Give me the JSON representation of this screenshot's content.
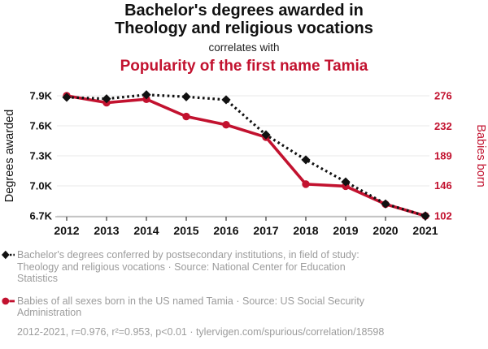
{
  "header": {
    "title_line1": "Bachelor's degrees awarded in",
    "title_line2": "Theology and religious vocations",
    "connector": "correlates with",
    "subtitle": "Popularity of the first name Tamia"
  },
  "colors": {
    "series1": "#111111",
    "series2": "#c2122f",
    "legend_text": "#9c9c9c",
    "grid": "#ededed",
    "axis_line": "#aaaaaa",
    "axis_tick": "#444444",
    "tick_label": "#111111"
  },
  "chart_data": {
    "type": "line",
    "title": "Bachelor's degrees awarded in Theology and religious vocations correlates with Popularity of the first name Tamia",
    "x": [
      2012,
      2013,
      2014,
      2015,
      2016,
      2017,
      2018,
      2019,
      2020,
      2021
    ],
    "x_ticks": [
      "2012",
      "2013",
      "2014",
      "2015",
      "2016",
      "2017",
      "2018",
      "2019",
      "2020",
      "2021"
    ],
    "series": [
      {
        "name": "Bachelor's degrees conferred by postsecondary institutions, in field of study: Theology and religious vocations",
        "axis": "left",
        "style": "dashed-diamond",
        "color": "#111111",
        "values": [
          7885,
          7870,
          7910,
          7890,
          7860,
          7510,
          7260,
          7040,
          6820,
          6700
        ]
      },
      {
        "name": "Babies of all sexes born in the US named Tamia",
        "axis": "right",
        "style": "solid-circle",
        "color": "#c2122f",
        "values": [
          276,
          266,
          271,
          246,
          234,
          216,
          148,
          145,
          119,
          102
        ]
      }
    ],
    "left_axis": {
      "label": "Degrees awarded",
      "ticks": [
        "7.9K",
        "7.6K",
        "7.3K",
        "7.0K",
        "6.7K"
      ],
      "tick_values": [
        7900,
        7600,
        7300,
        7000,
        6700
      ],
      "range": [
        6700,
        7900
      ]
    },
    "right_axis": {
      "label": "Babies born",
      "ticks": [
        "276",
        "232",
        "189",
        "146",
        "102"
      ],
      "tick_values": [
        276,
        232,
        189,
        146,
        102
      ],
      "range": [
        102,
        276
      ]
    },
    "grid": "horizontal-only",
    "legend_position": "bottom"
  },
  "legend": {
    "items": [
      {
        "text": "Bachelor's degrees conferred by postsecondary institutions, in field of study: Theology and religious vocations · Source: National Center for Education Statistics"
      },
      {
        "text": "Babies of all sexes born in the US named Tamia · Source: US Social Security Administration"
      }
    ],
    "footer": "2012-2021, r=0.976, r²=0.953, p<0.01 · tylervigen.com/spurious/correlation/18598"
  }
}
